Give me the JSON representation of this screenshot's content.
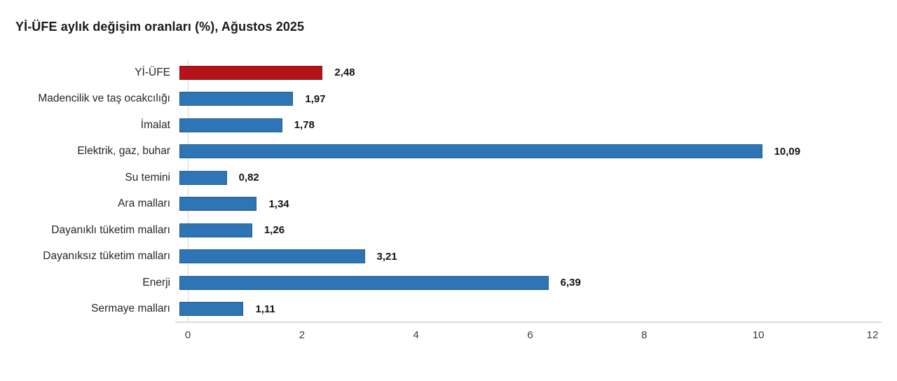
{
  "chart_data": {
    "type": "bar",
    "orientation": "horizontal",
    "title": "Yİ-ÜFE aylık değişim oranları (%), Ağustos 2025",
    "series": [
      {
        "label": "Yİ-ÜFE",
        "value": 2.48,
        "display": "2,48",
        "color": "#b5131a",
        "highlight": true
      },
      {
        "label": "Madencilik ve taş ocakcılığı",
        "value": 1.97,
        "display": "1,97",
        "color": "#2e75b6",
        "highlight": false
      },
      {
        "label": "İmalat",
        "value": 1.78,
        "display": "1,78",
        "color": "#2e75b6",
        "highlight": false
      },
      {
        "label": "Elektrik, gaz, buhar",
        "value": 10.09,
        "display": "10,09",
        "color": "#2e75b6",
        "highlight": false
      },
      {
        "label": "Su temini",
        "value": 0.82,
        "display": "0,82",
        "color": "#2e75b6",
        "highlight": false
      },
      {
        "label": "Ara malları",
        "value": 1.34,
        "display": "1,34",
        "color": "#2e75b6",
        "highlight": false
      },
      {
        "label": "Dayanıklı tüketim malları",
        "value": 1.26,
        "display": "1,26",
        "color": "#2e75b6",
        "highlight": false
      },
      {
        "label": "Dayanıksız tüketim malları",
        "value": 3.21,
        "display": "3,21",
        "color": "#2e75b6",
        "highlight": false
      },
      {
        "label": "Enerji",
        "value": 6.39,
        "display": "6,39",
        "color": "#2e75b6",
        "highlight": false
      },
      {
        "label": "Sermaye malları",
        "value": 1.11,
        "display": "1,11",
        "color": "#2e75b6",
        "highlight": false
      }
    ],
    "xlim": [
      0,
      12
    ],
    "xticks": [
      "0",
      "2",
      "4",
      "6",
      "8",
      "10",
      "12"
    ],
    "grid": false,
    "legend": "none",
    "colors": {
      "highlight_bar": "#b5131a",
      "default_bar": "#2e75b6",
      "axis_line": "#d6d6d6",
      "title_text": "#1a1a1a",
      "label_text": "#262626",
      "value_text": "#141414",
      "background": "#ffffff"
    }
  }
}
